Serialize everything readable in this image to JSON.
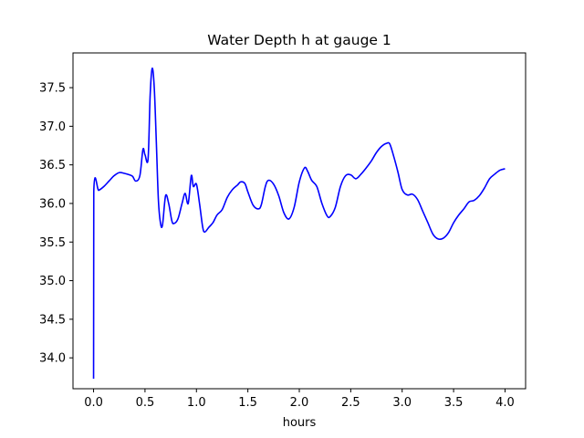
{
  "chart_data": {
    "type": "line",
    "title": "Water Depth h at gauge 1",
    "xlabel": "hours",
    "ylabel": "",
    "xlim": [
      -0.2,
      4.2
    ],
    "ylim": [
      33.6,
      37.95
    ],
    "xticks": [
      0.0,
      0.5,
      1.0,
      1.5,
      2.0,
      2.5,
      3.0,
      3.5,
      4.0
    ],
    "xtick_labels": [
      "0.0",
      "0.5",
      "1.0",
      "1.5",
      "2.0",
      "2.5",
      "3.0",
      "3.5",
      "4.0"
    ],
    "yticks": [
      34.0,
      34.5,
      35.0,
      35.5,
      36.0,
      36.5,
      37.0,
      37.5
    ],
    "ytick_labels": [
      "34.0",
      "34.5",
      "35.0",
      "35.5",
      "36.0",
      "36.5",
      "37.0",
      "37.5"
    ],
    "grid": false,
    "series": [
      {
        "color": "#0000ff",
        "points": [
          [
            0.0,
            33.73
          ],
          [
            0.002,
            36.15
          ],
          [
            0.05,
            36.17
          ],
          [
            0.1,
            36.22
          ],
          [
            0.15,
            36.29
          ],
          [
            0.2,
            36.36
          ],
          [
            0.25,
            36.4
          ],
          [
            0.3,
            36.39
          ],
          [
            0.35,
            36.37
          ],
          [
            0.38,
            36.35
          ],
          [
            0.41,
            36.29
          ],
          [
            0.45,
            36.36
          ],
          [
            0.48,
            36.7
          ],
          [
            0.5,
            36.63
          ],
          [
            0.53,
            36.58
          ],
          [
            0.55,
            37.4
          ],
          [
            0.57,
            37.75
          ],
          [
            0.59,
            37.5
          ],
          [
            0.61,
            36.8
          ],
          [
            0.63,
            36.05
          ],
          [
            0.65,
            35.75
          ],
          [
            0.67,
            35.72
          ],
          [
            0.7,
            36.1
          ],
          [
            0.73,
            36.0
          ],
          [
            0.76,
            35.78
          ],
          [
            0.78,
            35.74
          ],
          [
            0.82,
            35.8
          ],
          [
            0.86,
            36.0
          ],
          [
            0.89,
            36.13
          ],
          [
            0.92,
            36.0
          ],
          [
            0.95,
            36.36
          ],
          [
            0.97,
            36.22
          ],
          [
            1.0,
            36.25
          ],
          [
            1.03,
            36.0
          ],
          [
            1.06,
            35.7
          ],
          [
            1.08,
            35.63
          ],
          [
            1.12,
            35.69
          ],
          [
            1.16,
            35.75
          ],
          [
            1.2,
            35.85
          ],
          [
            1.25,
            35.92
          ],
          [
            1.3,
            36.08
          ],
          [
            1.35,
            36.18
          ],
          [
            1.4,
            36.24
          ],
          [
            1.43,
            36.28
          ],
          [
            1.47,
            36.26
          ],
          [
            1.5,
            36.15
          ],
          [
            1.55,
            35.98
          ],
          [
            1.6,
            35.93
          ],
          [
            1.63,
            35.98
          ],
          [
            1.67,
            36.22
          ],
          [
            1.7,
            36.3
          ],
          [
            1.75,
            36.25
          ],
          [
            1.8,
            36.1
          ],
          [
            1.85,
            35.88
          ],
          [
            1.9,
            35.8
          ],
          [
            1.95,
            35.95
          ],
          [
            2.0,
            36.28
          ],
          [
            2.05,
            36.46
          ],
          [
            2.08,
            36.42
          ],
          [
            2.12,
            36.3
          ],
          [
            2.17,
            36.22
          ],
          [
            2.22,
            36.0
          ],
          [
            2.27,
            35.84
          ],
          [
            2.3,
            35.83
          ],
          [
            2.35,
            35.95
          ],
          [
            2.4,
            36.22
          ],
          [
            2.45,
            36.36
          ],
          [
            2.5,
            36.37
          ],
          [
            2.55,
            36.32
          ],
          [
            2.6,
            36.38
          ],
          [
            2.65,
            36.46
          ],
          [
            2.7,
            36.55
          ],
          [
            2.75,
            36.66
          ],
          [
            2.8,
            36.74
          ],
          [
            2.85,
            36.78
          ],
          [
            2.88,
            36.77
          ],
          [
            2.92,
            36.6
          ],
          [
            2.96,
            36.4
          ],
          [
            3.0,
            36.18
          ],
          [
            3.05,
            36.11
          ],
          [
            3.1,
            36.12
          ],
          [
            3.15,
            36.05
          ],
          [
            3.2,
            35.9
          ],
          [
            3.25,
            35.75
          ],
          [
            3.3,
            35.6
          ],
          [
            3.35,
            35.54
          ],
          [
            3.4,
            35.55
          ],
          [
            3.45,
            35.62
          ],
          [
            3.5,
            35.75
          ],
          [
            3.55,
            35.85
          ],
          [
            3.6,
            35.93
          ],
          [
            3.65,
            36.02
          ],
          [
            3.7,
            36.04
          ],
          [
            3.75,
            36.1
          ],
          [
            3.8,
            36.2
          ],
          [
            3.85,
            36.32
          ],
          [
            3.9,
            36.38
          ],
          [
            3.95,
            36.43
          ],
          [
            4.0,
            36.45
          ]
        ]
      }
    ]
  }
}
